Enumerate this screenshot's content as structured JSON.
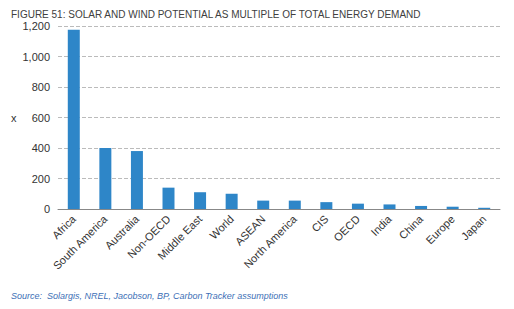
{
  "chart_data": {
    "type": "bar",
    "title": "FIGURE 51: SOLAR AND WIND POTENTIAL AS MULTIPLE OF TOTAL ENERGY DEMAND",
    "y_label": "x",
    "source": "Source:  Solargis, NREL, Jacobson, BP, Carbon Tracker assumptions",
    "categories": [
      "Africa",
      "South America",
      "Australia",
      "Non-OECD",
      "Middle East",
      "World",
      "ASEAN",
      "North America",
      "CIS",
      "OECD",
      "India",
      "China",
      "Europe",
      "Japan"
    ],
    "values": [
      1175,
      400,
      380,
      140,
      110,
      100,
      55,
      55,
      45,
      35,
      30,
      20,
      15,
      8
    ],
    "color": "#2e86c8",
    "ylim": [
      0,
      1200
    ],
    "yticks": [
      0,
      200,
      400,
      600,
      800,
      {
        "value": 1000,
        "label": "1,000"
      },
      {
        "value": 1200,
        "label": "1,200"
      }
    ],
    "grid": true
  }
}
